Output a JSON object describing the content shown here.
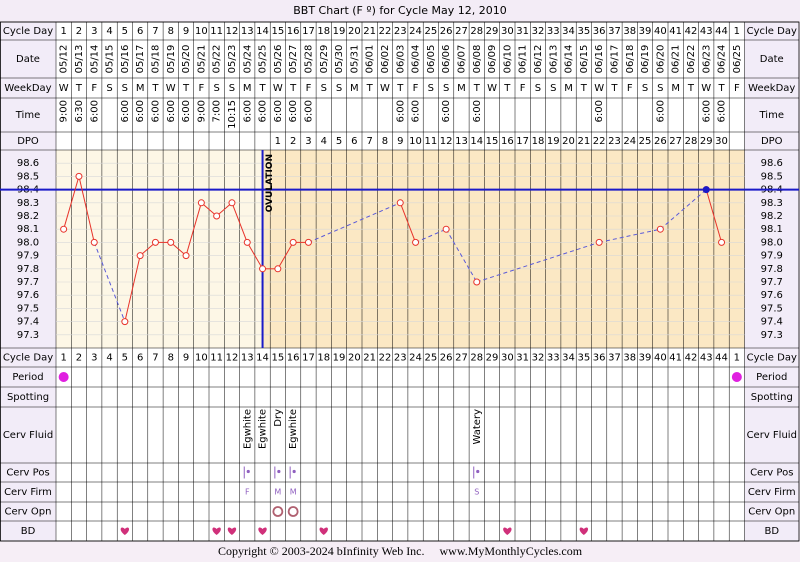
{
  "title": "BBT Chart (F º) for Cycle May 12, 2010",
  "row_labels": {
    "cycle_day": "Cycle Day",
    "date": "Date",
    "weekday": "WeekDay",
    "time": "Time",
    "dpo": "DPO",
    "period": "Period",
    "spotting": "Spotting",
    "cerv_fluid": "Cerv Fluid",
    "cerv_pos": "Cerv Pos",
    "cerv_firm": "Cerv Firm",
    "cerv_opn": "Cerv Opn",
    "bd": "BD"
  },
  "cycle_days": [
    1,
    2,
    3,
    4,
    5,
    6,
    7,
    8,
    9,
    10,
    11,
    12,
    13,
    14,
    15,
    16,
    17,
    18,
    19,
    20,
    21,
    22,
    23,
    24,
    25,
    26,
    27,
    28,
    29,
    30,
    31,
    32,
    33,
    34,
    35,
    36,
    37,
    38,
    39,
    40,
    41,
    42,
    43,
    44,
    1
  ],
  "dates": [
    "05/12",
    "05/13",
    "05/14",
    "05/15",
    "05/16",
    "05/17",
    "05/18",
    "05/19",
    "05/20",
    "05/21",
    "05/22",
    "05/23",
    "05/24",
    "05/25",
    "05/26",
    "05/27",
    "05/28",
    "05/29",
    "05/30",
    "05/31",
    "06/01",
    "06/02",
    "06/03",
    "06/04",
    "06/05",
    "06/06",
    "06/07",
    "06/08",
    "06/09",
    "06/10",
    "06/11",
    "06/12",
    "06/13",
    "06/14",
    "06/15",
    "06/16",
    "06/17",
    "06/18",
    "06/19",
    "06/20",
    "06/21",
    "06/22",
    "06/23",
    "06/24",
    "06/25"
  ],
  "weekdays": [
    "W",
    "T",
    "F",
    "S",
    "S",
    "M",
    "T",
    "W",
    "T",
    "F",
    "S",
    "S",
    "M",
    "T",
    "W",
    "T",
    "F",
    "S",
    "S",
    "M",
    "T",
    "W",
    "T",
    "F",
    "S",
    "S",
    "M",
    "T",
    "W",
    "T",
    "F",
    "S",
    "S",
    "M",
    "T",
    "W",
    "T",
    "F",
    "S",
    "S",
    "M",
    "T",
    "W",
    "T",
    "F"
  ],
  "times": [
    "9:00",
    "6:30",
    "6:00",
    null,
    "6:00",
    "6:00",
    "6:00",
    "6:00",
    "6:00",
    "9:00",
    "7:00",
    "10:15",
    "6:00",
    "6:00",
    "6:00",
    "6:00",
    "6:00",
    null,
    null,
    null,
    null,
    null,
    "6:00",
    "6:00",
    null,
    "6:00",
    null,
    "6:00",
    null,
    null,
    null,
    null,
    null,
    null,
    null,
    "6:00",
    null,
    null,
    null,
    "6:00",
    null,
    null,
    "6:00",
    "6:00",
    null
  ],
  "dpo": [
    null,
    null,
    null,
    null,
    null,
    null,
    null,
    null,
    null,
    null,
    null,
    null,
    null,
    null,
    1,
    2,
    3,
    4,
    5,
    6,
    7,
    8,
    9,
    10,
    11,
    12,
    13,
    14,
    15,
    16,
    17,
    18,
    19,
    20,
    21,
    22,
    23,
    24,
    25,
    26,
    27,
    28,
    29,
    30,
    null
  ],
  "chart_data": {
    "type": "line",
    "values": [
      98.1,
      98.5,
      98.0,
      null,
      97.4,
      97.9,
      98.0,
      98.0,
      97.9,
      98.3,
      98.2,
      98.3,
      98.0,
      97.8,
      97.8,
      98.0,
      98.0,
      null,
      null,
      null,
      null,
      null,
      98.3,
      98.0,
      null,
      98.1,
      null,
      97.7,
      null,
      null,
      null,
      null,
      null,
      null,
      null,
      98.0,
      null,
      null,
      null,
      98.1,
      null,
      null,
      98.4,
      98.0,
      null
    ],
    "color": "#e8332a",
    "gap_color": "#5a5ad8",
    "ylim": [
      97.2,
      98.7
    ],
    "yticks": [
      98.6,
      98.5,
      98.4,
      98.3,
      98.2,
      98.1,
      {
        "value": 98,
        "label": "98.0"
      },
      97.9,
      97.8,
      97.7,
      97.6,
      97.5,
      97.4,
      97.3
    ],
    "grid": true,
    "coverline": 98.4,
    "coverline_color": "#1a1ac8",
    "ovulation_column": 14,
    "ovulation_label": "OVULATION"
  },
  "period": [
    1,
    45
  ],
  "cerv_fluid": [
    {
      "column": 13,
      "label": "Egwhite"
    },
    {
      "column": 14,
      "label": "Egwhite"
    },
    {
      "column": 15,
      "label": "Dry"
    },
    {
      "column": 16,
      "label": "Egwhite"
    },
    {
      "column": 28,
      "label": "Watery"
    }
  ],
  "cerv_pos": [
    13,
    15,
    16,
    28
  ],
  "cerv_firm": [
    {
      "column": 13,
      "label": "F"
    },
    {
      "column": 15,
      "label": "M"
    },
    {
      "column": 16,
      "label": "M"
    },
    {
      "column": 28,
      "label": "S"
    }
  ],
  "cerv_opn": [
    15,
    16
  ],
  "bd": [
    5,
    11,
    12,
    14,
    18,
    30,
    35
  ],
  "copyright": "Copyright © 2003-2024 bInfinity Web Inc.     www.MyMonthlyCycles.com"
}
